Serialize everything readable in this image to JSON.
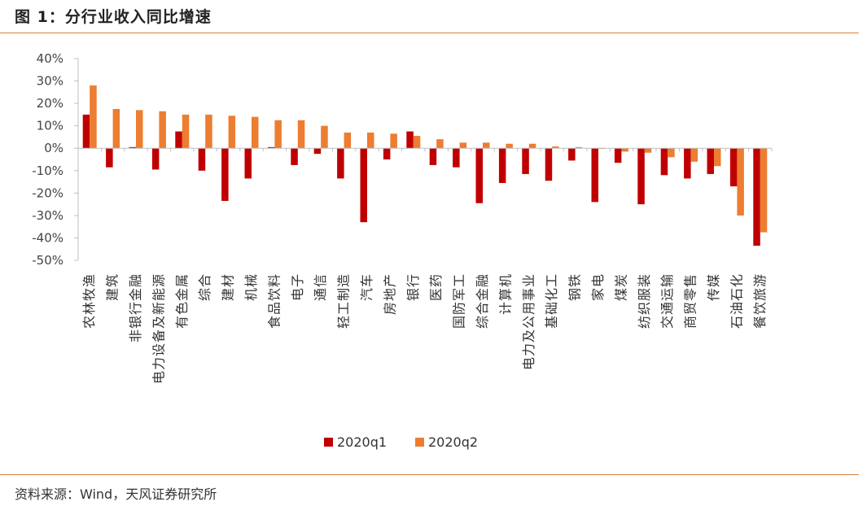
{
  "header": {
    "title": "图 1：分行业收入同比增速"
  },
  "footer": {
    "source": "资料来源：Wind，天风证券研究所"
  },
  "colors": {
    "q1": "#c00000",
    "q2": "#ed7d31",
    "rule": "#d9823c",
    "axis": "#bfbfbf"
  },
  "chart_data": {
    "type": "bar",
    "title": "分行业收入同比增速",
    "ylim": [
      -50,
      40
    ],
    "ytick_step": 10,
    "ytick_format": "percent",
    "legend_position": "bottom",
    "categories": [
      "农林牧渔",
      "建筑",
      "非银行金融",
      "电力设备及新能源",
      "有色金属",
      "综合",
      "建材",
      "机械",
      "食品饮料",
      "电子",
      "通信",
      "轻工制造",
      "汽车",
      "房地产",
      "银行",
      "医药",
      "国防军工",
      "综合金融",
      "计算机",
      "电力及公用事业",
      "基础化工",
      "钢铁",
      "家电",
      "煤炭",
      "纺织服装",
      "交通运输",
      "商贸零售",
      "传媒",
      "石油石化",
      "餐饮旅游"
    ],
    "series": [
      {
        "name": "2020q1",
        "values": [
          15,
          -8.5,
          0.5,
          -9.5,
          7.5,
          -10,
          -23.5,
          -13.5,
          0.5,
          -7.5,
          -2.5,
          -13.5,
          -33,
          -5,
          7.5,
          -7.5,
          -8.5,
          -24.5,
          -15.5,
          -11.5,
          -14.5,
          -5.5,
          -24,
          -6.5,
          -25,
          -12,
          -13.5,
          -11.5,
          -17,
          -43.5
        ]
      },
      {
        "name": "2020q2",
        "values": [
          28,
          17.5,
          17,
          16.5,
          15,
          15,
          14.5,
          14,
          12.5,
          12.5,
          10,
          7,
          7,
          6.5,
          5.5,
          4,
          2.5,
          2.5,
          2,
          2,
          0.8,
          0.5,
          -0.2,
          -1.5,
          -2,
          -4,
          -6,
          -8,
          -30,
          -37.5
        ]
      }
    ]
  }
}
